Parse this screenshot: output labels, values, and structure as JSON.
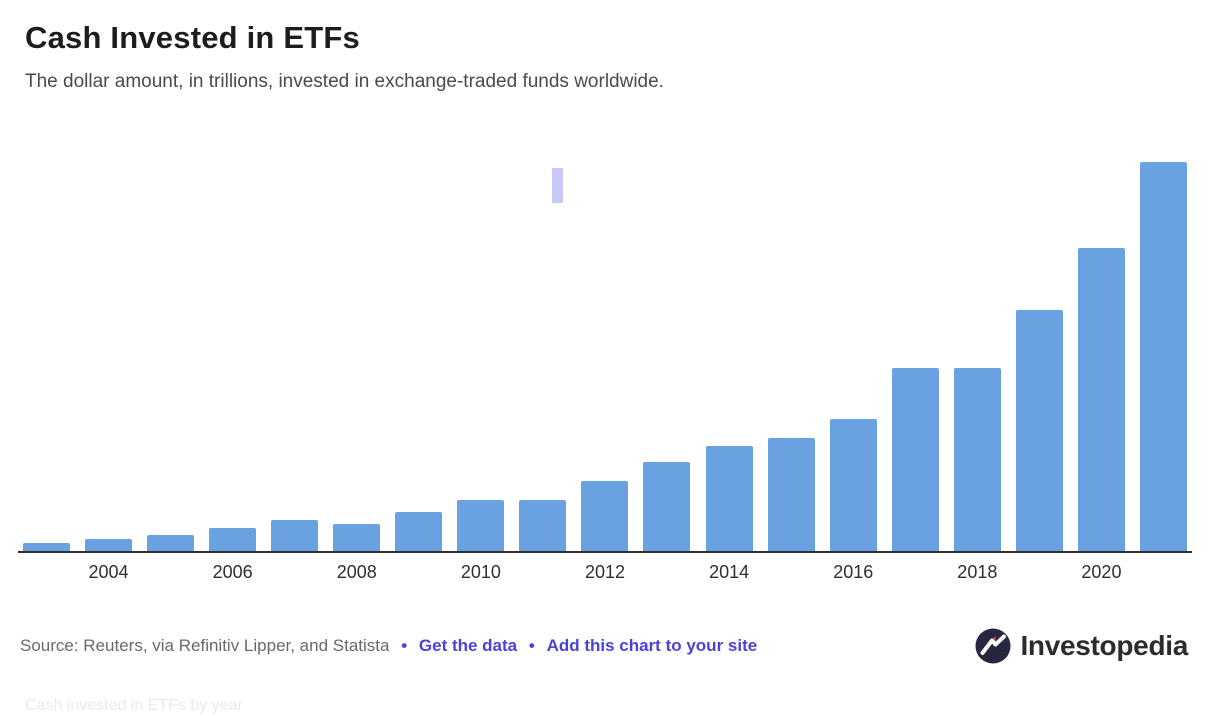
{
  "header": {
    "title": "Cash Invested in ETFs",
    "subtitle": "The dollar amount, in trillions, invested in exchange-traded funds worldwide."
  },
  "chart_data": {
    "type": "bar",
    "title": "Cash Invested in ETFs",
    "unit": "trillions of US dollars",
    "categories": [
      "2003",
      "2004",
      "2005",
      "2006",
      "2007",
      "2008",
      "2009",
      "2010",
      "2011",
      "2012",
      "2013",
      "2014",
      "2015",
      "2016",
      "2017",
      "2018",
      "2019",
      "2020",
      "2021"
    ],
    "values": [
      0.2,
      0.3,
      0.4,
      0.6,
      0.8,
      0.7,
      1.0,
      1.3,
      1.3,
      1.8,
      2.3,
      2.7,
      2.9,
      3.4,
      4.7,
      4.7,
      6.2,
      7.8,
      10.0
    ],
    "x_tick_labels": [
      "2004",
      "2006",
      "2008",
      "2010",
      "2012",
      "2014",
      "2016",
      "2018",
      "2020"
    ],
    "xlabel": "",
    "ylabel": "",
    "ylim": [
      0,
      10
    ],
    "grid": false,
    "legend": false,
    "bar_color": "#6aa2e1",
    "axis_color": "#33302b"
  },
  "artifact": {
    "color": "#c6c8f7"
  },
  "footer": {
    "source_text": "Source: Reuters, via Refinitiv Lipper, and Statista",
    "separator": "•",
    "links": [
      {
        "label": "Get the data"
      },
      {
        "label": "Add this chart to your site"
      }
    ],
    "link_color": "#4a43d9",
    "logo_text": "Investopedia",
    "logo_circle_color": "#26263f",
    "logo_accent_color": "#d43a32"
  },
  "caption_faint": "Cash invested in ETFs by year"
}
